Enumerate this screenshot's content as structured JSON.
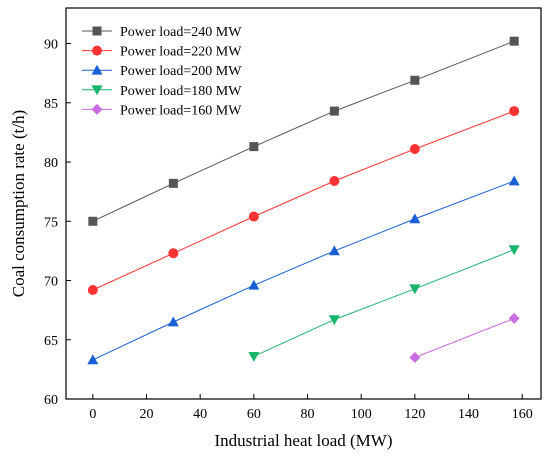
{
  "chart_data": {
    "type": "line",
    "title": "",
    "xlabel": "Industrial heat load (MW)",
    "ylabel": "Coal consumption rate (t/h)",
    "xlim": [
      -10,
      167
    ],
    "ylim": [
      60,
      93
    ],
    "xticks": [
      0,
      20,
      40,
      60,
      80,
      100,
      120,
      140,
      160
    ],
    "yticks": [
      60,
      65,
      70,
      75,
      80,
      85,
      90
    ],
    "grid": false,
    "legend_position": "top-left",
    "series": [
      {
        "name": "Power load=240 MW",
        "color": "#555555",
        "marker": "square",
        "x": [
          0,
          30,
          60,
          90,
          120,
          157
        ],
        "y": [
          75.0,
          78.2,
          81.3,
          84.3,
          86.9,
          90.2
        ]
      },
      {
        "name": "Power load=220 MW",
        "color": "#ff3333",
        "marker": "circle",
        "x": [
          0,
          30,
          60,
          90,
          120,
          157
        ],
        "y": [
          69.2,
          72.3,
          75.4,
          78.4,
          81.1,
          84.3
        ]
      },
      {
        "name": "Power load=200 MW",
        "color": "#1a5fd6",
        "marker": "triangle-up",
        "x": [
          0,
          30,
          60,
          90,
          120,
          157
        ],
        "y": [
          63.3,
          66.5,
          69.6,
          72.5,
          75.2,
          78.4
        ]
      },
      {
        "name": "Power load=180 MW",
        "color": "#19b56b",
        "marker": "triangle-down",
        "x": [
          60,
          90,
          120,
          157
        ],
        "y": [
          63.6,
          66.7,
          69.3,
          72.6
        ]
      },
      {
        "name": "Power load=160 MW",
        "color": "#c96ee0",
        "marker": "diamond",
        "x": [
          120,
          157
        ],
        "y": [
          63.5,
          66.8
        ]
      }
    ]
  }
}
